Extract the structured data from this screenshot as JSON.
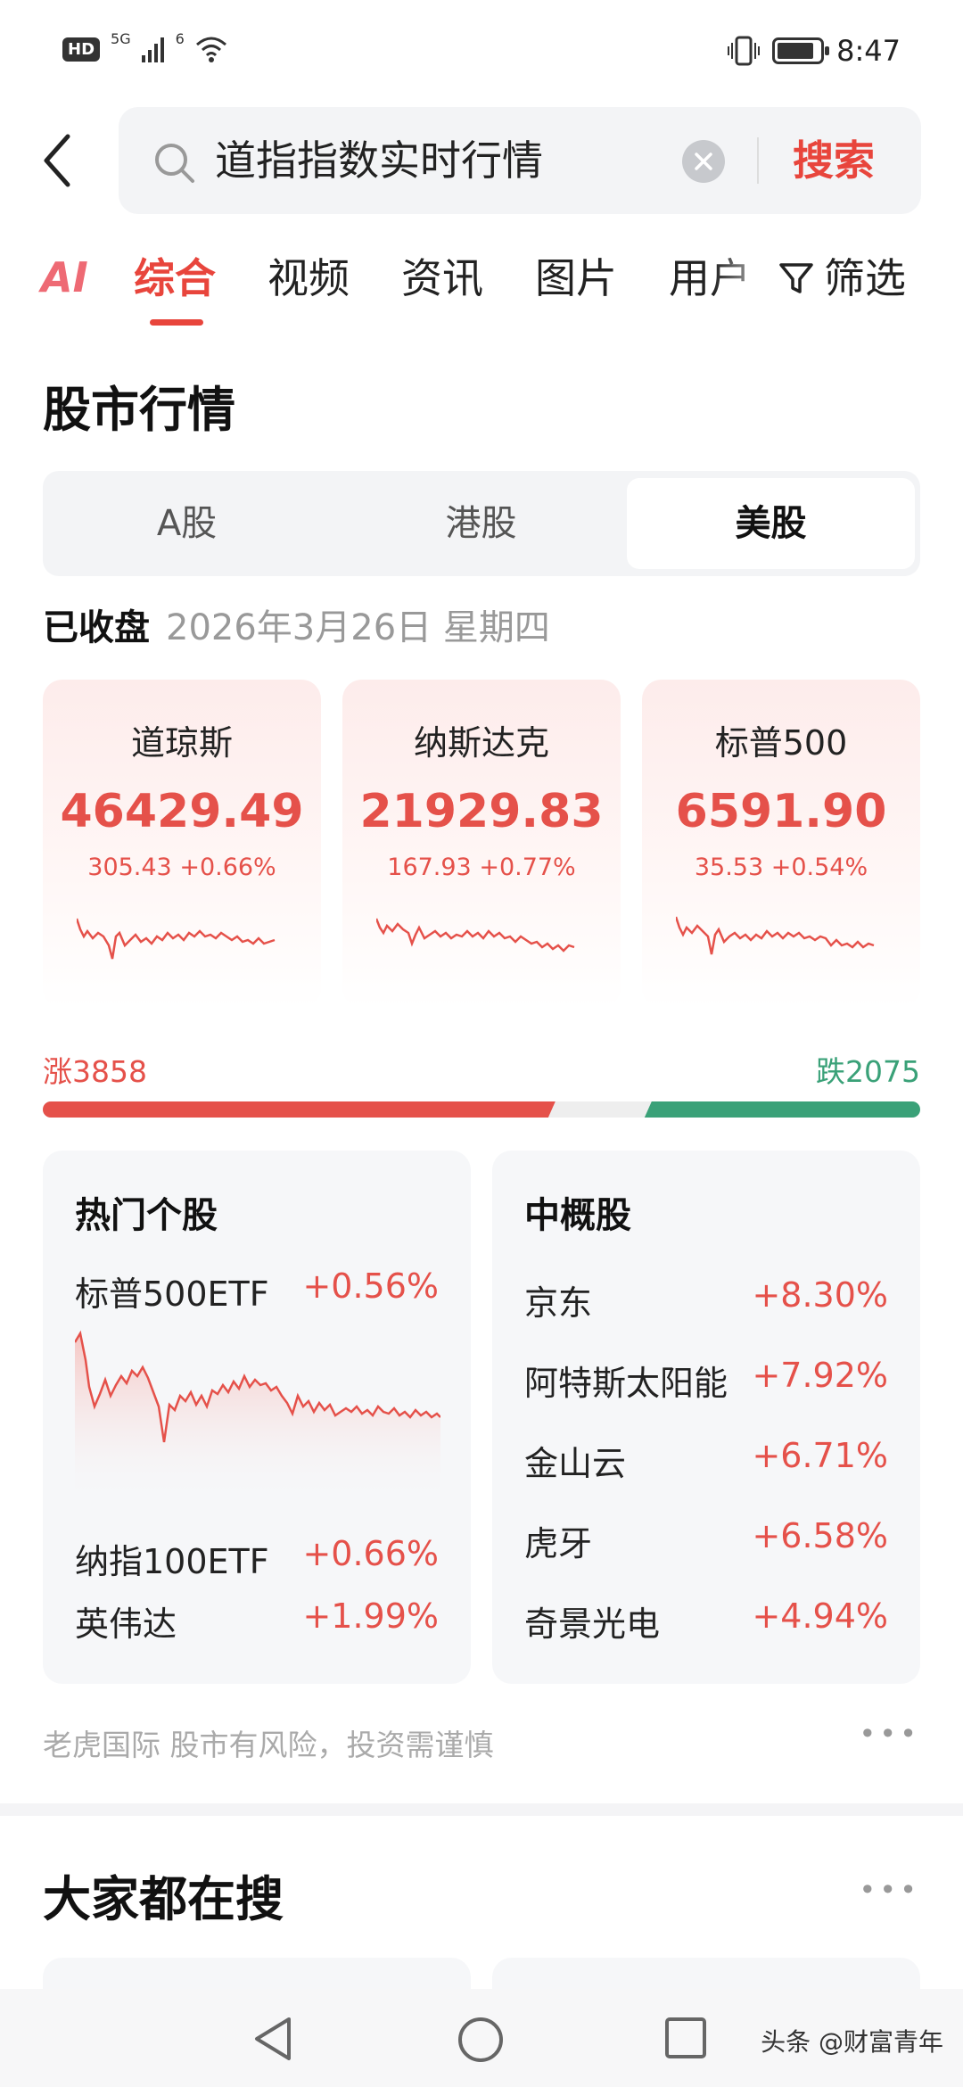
{
  "status_bar": {
    "hd": "HD",
    "signal_labels": [
      "5G",
      "6"
    ],
    "time": "8:47"
  },
  "search": {
    "query": "道指指数实时行情",
    "submit_label": "搜索"
  },
  "tabs": {
    "ai_label": "AI",
    "items": [
      "综合",
      "视频",
      "资讯",
      "图片",
      "用户"
    ],
    "active_index": 0,
    "filter_label": "筛选"
  },
  "stock_section": {
    "title": "股市行情",
    "market_tabs": [
      "A股",
      "港股",
      "美股"
    ],
    "active_market": 2,
    "status": "已收盘",
    "date": "2026年3月26日 星期四",
    "indices": [
      {
        "name": "道琼斯",
        "value": "46429.49",
        "change": "305.43 +0.66%"
      },
      {
        "name": "纳斯达克",
        "value": "21929.83",
        "change": "167.93 +0.77%"
      },
      {
        "name": "标普500",
        "value": "6591.90",
        "change": "35.53 +0.54%"
      }
    ],
    "breadth": {
      "up_label": "涨3858",
      "down_label": "跌2075",
      "up_count": 3858,
      "down_count": 2075
    },
    "hot_stocks": {
      "title": "热门个股",
      "featured": {
        "name": "标普500ETF",
        "pct": "+0.56%"
      },
      "others": [
        {
          "name": "纳指100ETF",
          "pct": "+0.66%"
        },
        {
          "name": "英伟达",
          "pct": "+1.99%"
        }
      ]
    },
    "china_concept": {
      "title": "中概股",
      "items": [
        {
          "name": "京东",
          "pct": "+8.30%"
        },
        {
          "name": "阿特斯太阳能",
          "pct": "+7.92%"
        },
        {
          "name": "金山云",
          "pct": "+6.71%"
        },
        {
          "name": "虎牙",
          "pct": "+6.58%"
        },
        {
          "name": "奇景光电",
          "pct": "+4.94%"
        }
      ]
    },
    "disclaimer": "老虎国际 股市有风险，投资需谨慎",
    "colors": {
      "up": "#e5514a",
      "down": "#3aa178",
      "accent": "#e8453c"
    }
  },
  "trending": {
    "title": "大家都在搜"
  },
  "watermark": "头条 @财富青年"
}
